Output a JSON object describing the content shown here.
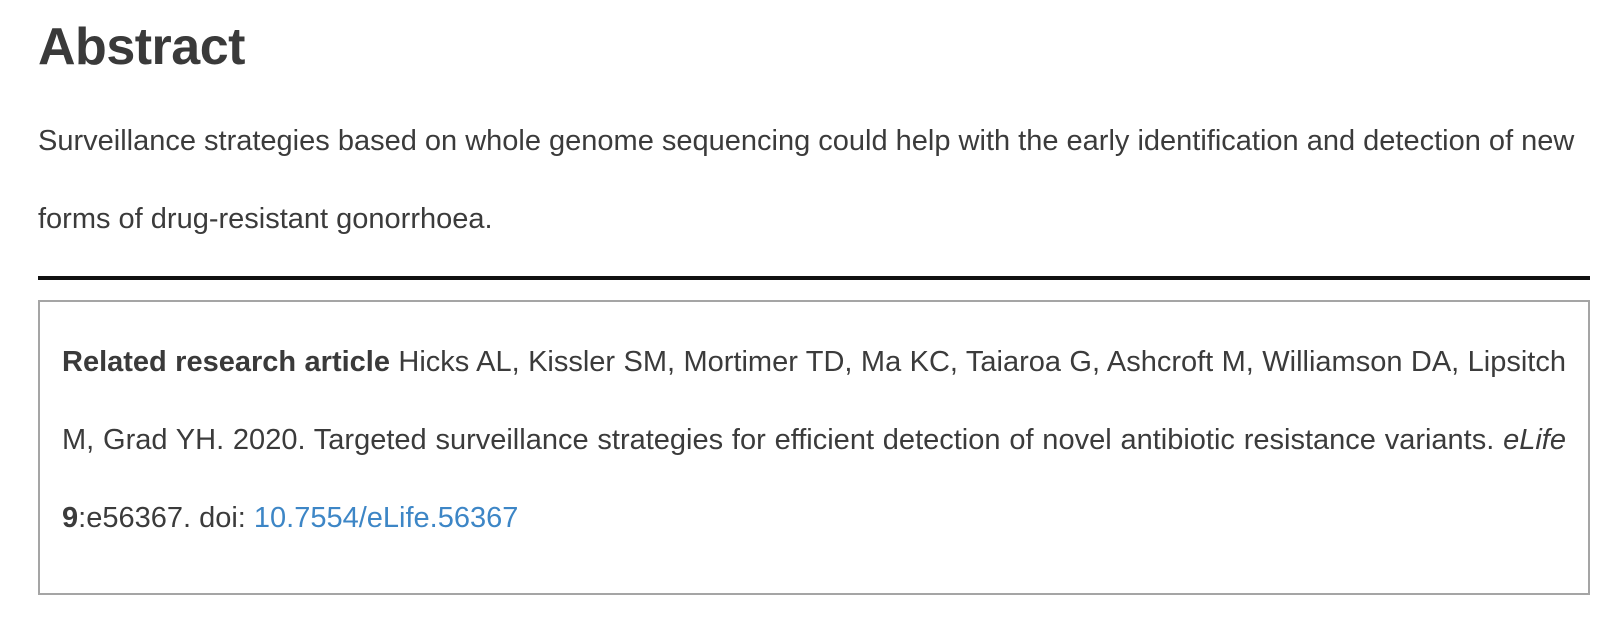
{
  "abstract": {
    "heading": "Abstract",
    "body": "Surveillance strategies based on whole genome sequencing could help with the early identification and detection of new forms of drug-resistant gonorrhoea."
  },
  "related": {
    "label": "Related research article",
    "citation": " Hicks AL, Kissler SM, Mortimer TD, Ma KC, Taiaroa G, Ashcroft M, Williamson DA, Lipsitch M, Grad YH. 2020. Targeted surveillance strategies for efficient detection of novel antibiotic resistance variants. ",
    "journal": "eLife",
    "volume": "9",
    "article_suffix": ":e56367. doi: ",
    "doi": "10.7554/eLife.56367"
  },
  "colors": {
    "text": "#3b3b3b",
    "link": "#3d86c6",
    "divider": "#111111",
    "box_border": "#a5a5a5"
  }
}
